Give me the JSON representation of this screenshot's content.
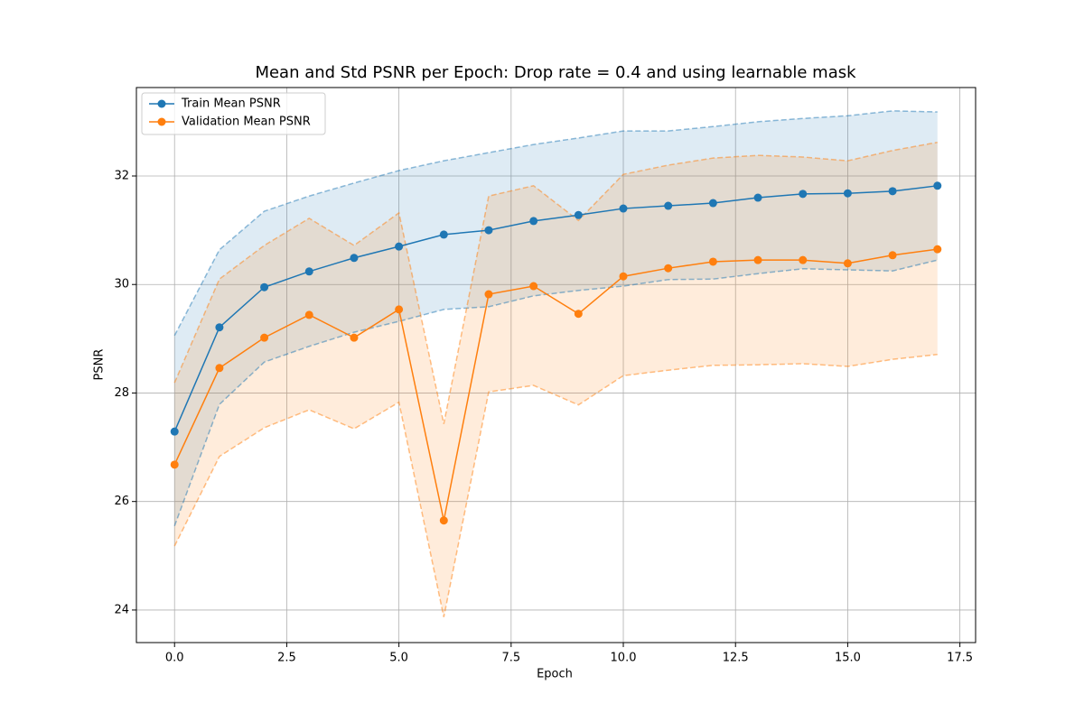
{
  "chart_data": {
    "type": "line",
    "title": "Mean and Std PSNR per Epoch: Drop rate = 0.4 and using learnable mask",
    "x_label": "Epoch",
    "y_label": "PSNR",
    "x": [
      0,
      1,
      2,
      3,
      4,
      5,
      6,
      7,
      8,
      9,
      10,
      11,
      12,
      13,
      14,
      15,
      16,
      17
    ],
    "series": [
      {
        "name": "Train Mean PSNR",
        "color": "#1f77b4",
        "values": [
          27.29,
          29.21,
          29.95,
          30.24,
          30.49,
          30.7,
          30.92,
          31.0,
          31.17,
          31.28,
          31.4,
          31.45,
          31.5,
          31.6,
          31.67,
          31.68,
          31.72,
          31.82
        ],
        "upper": [
          29.06,
          30.64,
          31.35,
          31.63,
          31.87,
          32.1,
          32.28,
          32.43,
          32.58,
          32.7,
          32.83,
          32.83,
          32.91,
          33.0,
          33.06,
          33.11,
          33.2,
          33.18
        ],
        "lower": [
          25.55,
          27.79,
          28.57,
          28.86,
          29.12,
          29.32,
          29.54,
          29.59,
          29.79,
          29.89,
          29.97,
          30.09,
          30.1,
          30.2,
          30.29,
          30.27,
          30.25,
          30.45
        ]
      },
      {
        "name": "Validation Mean PSNR",
        "color": "#ff7f0e",
        "values": [
          26.68,
          28.46,
          29.02,
          29.44,
          29.02,
          29.54,
          25.65,
          29.82,
          29.97,
          29.46,
          30.15,
          30.3,
          30.42,
          30.45,
          30.45,
          30.39,
          30.54,
          30.65
        ],
        "upper": [
          28.19,
          30.1,
          30.72,
          31.22,
          30.72,
          31.32,
          27.43,
          31.63,
          31.82,
          31.18,
          32.03,
          32.2,
          32.33,
          32.38,
          32.35,
          32.28,
          32.47,
          32.62
        ],
        "lower": [
          25.18,
          26.83,
          27.36,
          27.69,
          27.34,
          27.83,
          23.87,
          28.02,
          28.14,
          27.78,
          28.32,
          28.42,
          28.51,
          28.52,
          28.54,
          28.49,
          28.62,
          28.71
        ]
      }
    ],
    "xlim": [
      -0.85,
      17.85
    ],
    "ylim": [
      23.4,
      33.63
    ],
    "xticks": [
      {
        "value": 0,
        "label": "0.0"
      },
      {
        "value": 2.5,
        "label": "2.5"
      },
      {
        "value": 5,
        "label": "5.0"
      },
      {
        "value": 7.5,
        "label": "7.5"
      },
      {
        "value": 10,
        "label": "10.0"
      },
      {
        "value": 12.5,
        "label": "12.5"
      },
      {
        "value": 15,
        "label": "15.0"
      },
      {
        "value": 17.5,
        "label": "17.5"
      }
    ],
    "yticks": [
      24,
      26,
      28,
      30,
      32
    ],
    "grid": true,
    "legend": "upper-left"
  }
}
